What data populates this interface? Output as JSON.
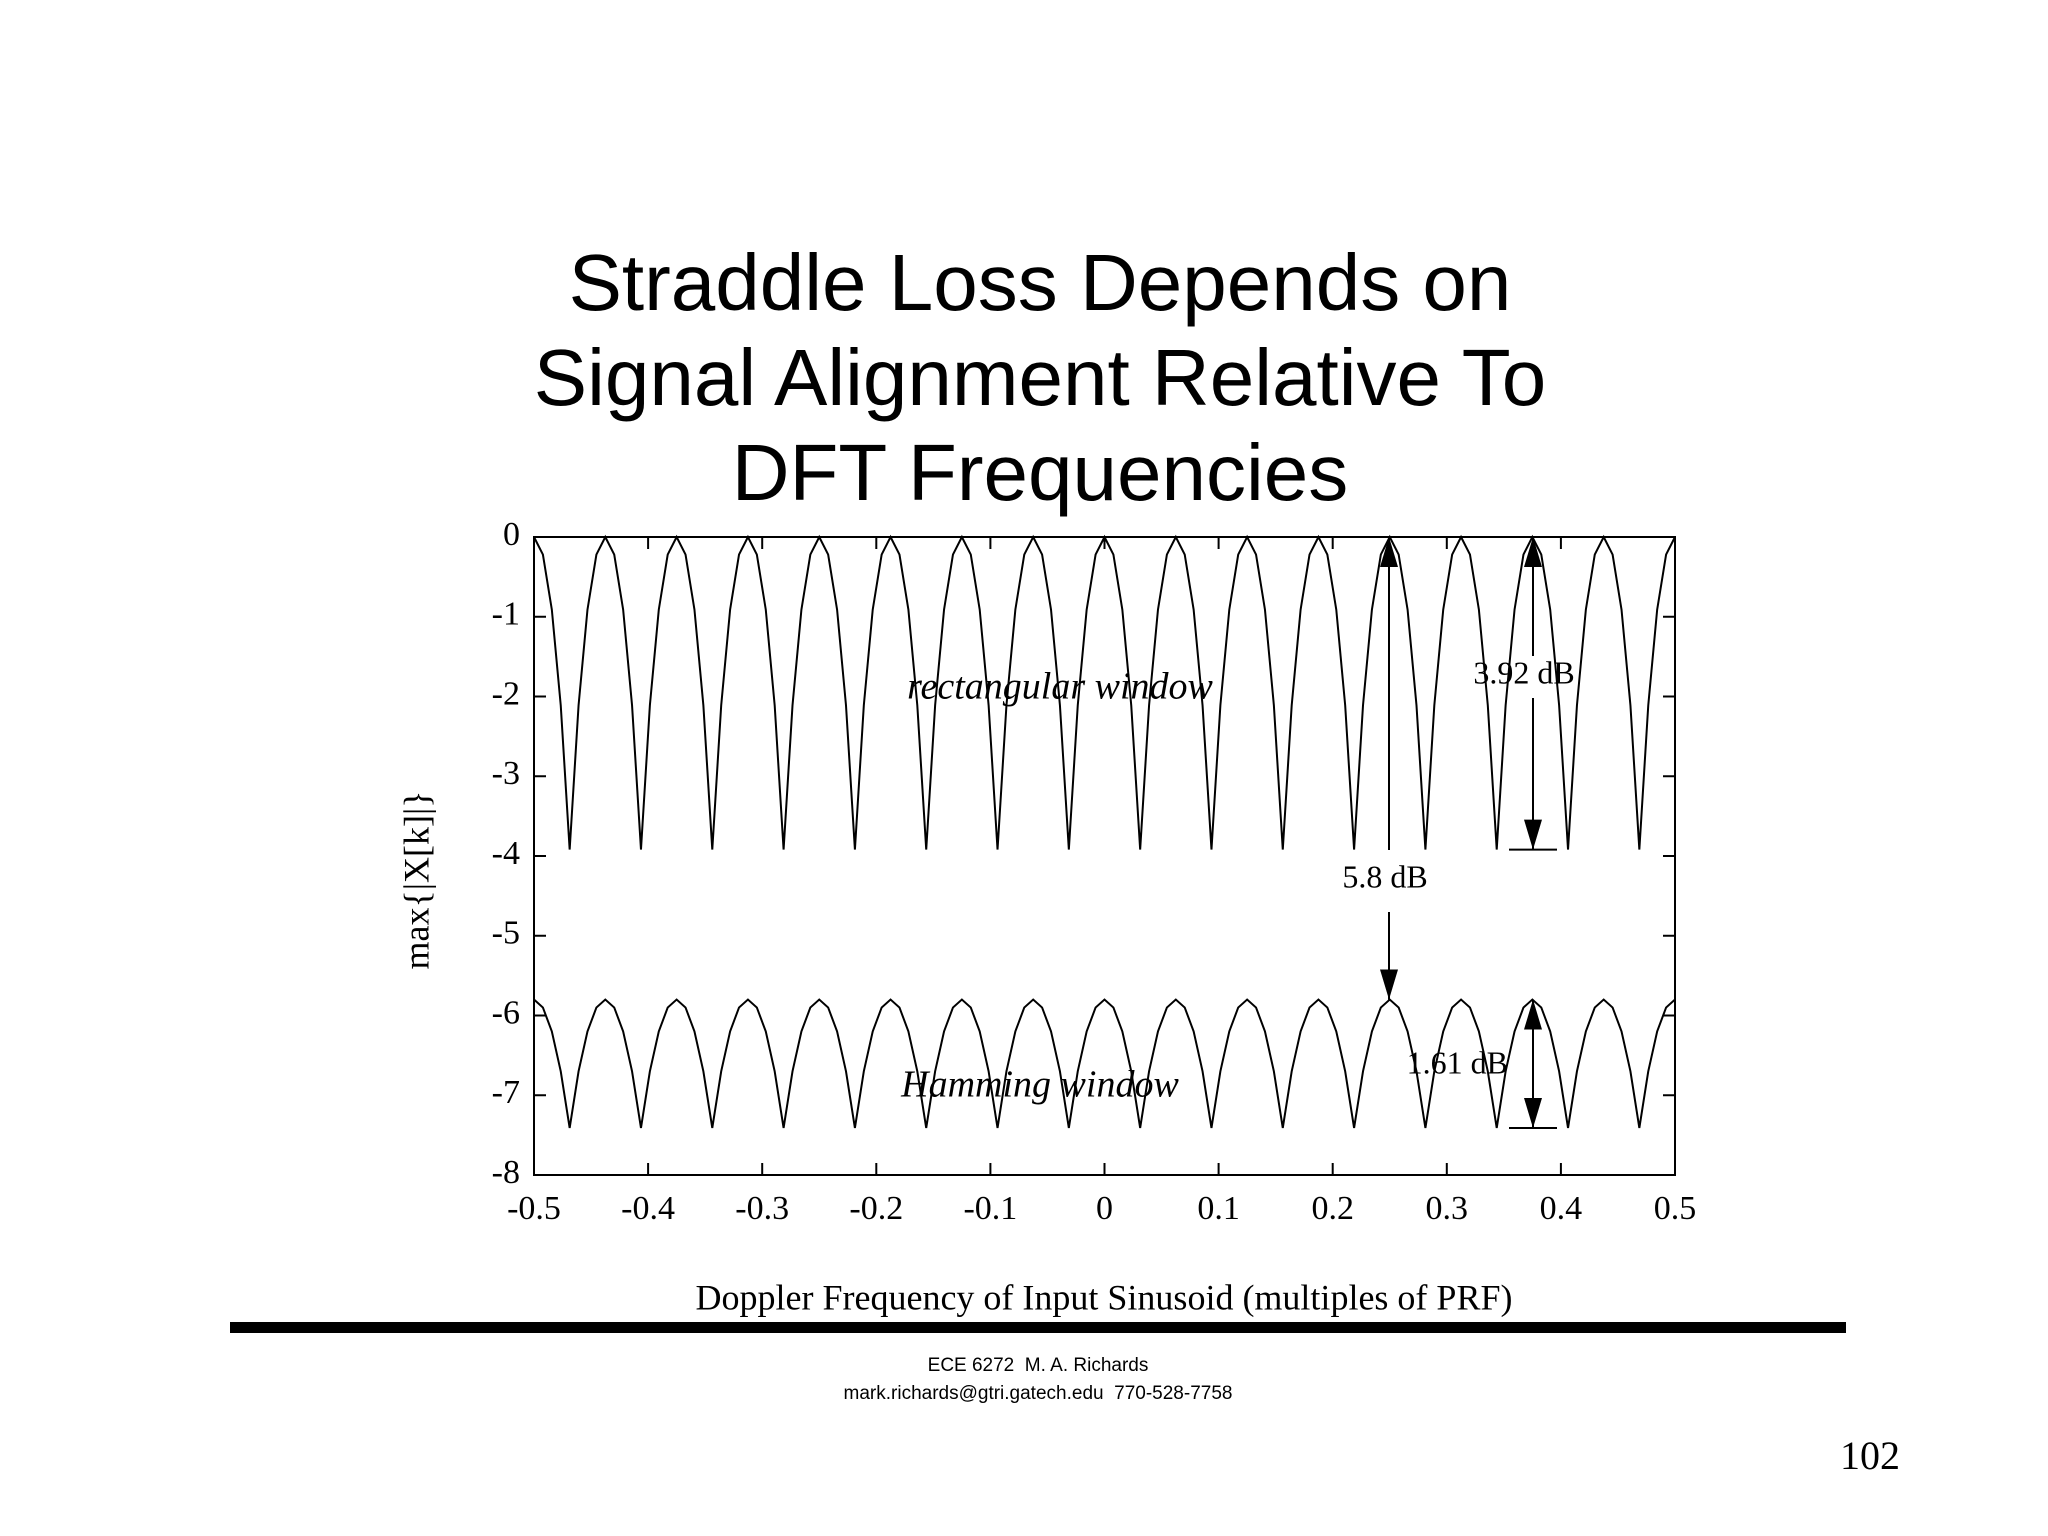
{
  "chart_data": {
    "type": "line",
    "title": [
      "Straddle Loss Depends on",
      "Signal Alignment Relative To",
      "DFT Frequencies"
    ],
    "x_label": "Doppler Frequency of Input Sinusoid (multiples of PRF)",
    "y_label": "max{|X[k]|}",
    "xlim": [
      -0.5,
      0.5
    ],
    "ylim": [
      -8,
      0
    ],
    "xticks": [
      -0.5,
      -0.4,
      -0.3,
      -0.2,
      -0.1,
      0,
      0.1,
      0.2,
      0.3,
      0.4,
      0.5
    ],
    "yticks": [
      0,
      -1,
      -2,
      -3,
      -4,
      -5,
      -6,
      -7,
      -8
    ],
    "grid": false,
    "annotations": [
      "rectangular window",
      "Hamming window",
      "3.92 dB",
      "5.8 dB",
      "1.61 dB"
    ],
    "x": [
      -0.5,
      -0.4921875,
      -0.484375,
      -0.4765625,
      -0.46875,
      -0.4609375,
      -0.453125,
      -0.4453125,
      -0.4375,
      -0.4296875,
      -0.421875,
      -0.4140625,
      -0.40625,
      -0.3984375,
      -0.390625,
      -0.3828125,
      -0.375,
      -0.3671875,
      -0.359375,
      -0.3515625,
      -0.34375,
      -0.3359375,
      -0.328125,
      -0.3203125,
      -0.3125,
      -0.3046875,
      -0.296875,
      -0.2890625,
      -0.28125,
      -0.2734375,
      -0.265625,
      -0.2578125,
      -0.25,
      -0.2421875,
      -0.234375,
      -0.2265625,
      -0.21875,
      -0.2109375,
      -0.203125,
      -0.1953125,
      -0.1875,
      -0.1796875,
      -0.171875,
      -0.1640625,
      -0.15625,
      -0.1484375,
      -0.140625,
      -0.1328125,
      -0.125,
      -0.1171875,
      -0.109375,
      -0.1015625,
      -0.09375,
      -0.0859375,
      -0.078125,
      -0.0703125,
      -0.0625,
      -0.0546875,
      -0.046875,
      -0.0390625,
      -0.03125,
      -0.0234375,
      -0.015625,
      -0.0078125,
      0,
      0.0078125,
      0.015625,
      0.0234375,
      0.03125,
      0.0390625,
      0.046875,
      0.0546875,
      0.0625,
      0.0703125,
      0.078125,
      0.0859375,
      0.09375,
      0.1015625,
      0.109375,
      0.1171875,
      0.125,
      0.1328125,
      0.140625,
      0.1484375,
      0.15625,
      0.1640625,
      0.171875,
      0.1796875,
      0.1875,
      0.1953125,
      0.203125,
      0.2109375,
      0.21875,
      0.2265625,
      0.234375,
      0.2421875,
      0.25,
      0.2578125,
      0.265625,
      0.2734375,
      0.28125,
      0.2890625,
      0.296875,
      0.3046875,
      0.3125,
      0.3203125,
      0.328125,
      0.3359375,
      0.34375,
      0.3515625,
      0.359375,
      0.3671875,
      0.375,
      0.3828125,
      0.390625,
      0.3984375,
      0.40625,
      0.4140625,
      0.421875,
      0.4296875,
      0.4375,
      0.4453125,
      0.453125,
      0.4609375,
      0.46875,
      0.4765625,
      0.484375,
      0.4921875,
      0.5
    ],
    "series": [
      {
        "name": "rectangular window",
        "color": "#000000",
        "values": [
          0,
          -0.22,
          -0.91,
          -2.11,
          -3.92,
          -2.11,
          -0.91,
          -0.22,
          0,
          -0.22,
          -0.91,
          -2.11,
          -3.92,
          -2.11,
          -0.91,
          -0.22,
          0,
          -0.22,
          -0.91,
          -2.11,
          -3.92,
          -2.11,
          -0.91,
          -0.22,
          0,
          -0.22,
          -0.91,
          -2.11,
          -3.92,
          -2.11,
          -0.91,
          -0.22,
          0,
          -0.22,
          -0.91,
          -2.11,
          -3.92,
          -2.11,
          -0.91,
          -0.22,
          0,
          -0.22,
          -0.91,
          -2.11,
          -3.92,
          -2.11,
          -0.91,
          -0.22,
          0,
          -0.22,
          -0.91,
          -2.11,
          -3.92,
          -2.11,
          -0.91,
          -0.22,
          0,
          -0.22,
          -0.91,
          -2.11,
          -3.92,
          -2.11,
          -0.91,
          -0.22,
          0,
          -0.22,
          -0.91,
          -2.11,
          -3.92,
          -2.11,
          -0.91,
          -0.22,
          0,
          -0.22,
          -0.91,
          -2.11,
          -3.92,
          -2.11,
          -0.91,
          -0.22,
          0,
          -0.22,
          -0.91,
          -2.11,
          -3.92,
          -2.11,
          -0.91,
          -0.22,
          0,
          -0.22,
          -0.91,
          -2.11,
          -3.92,
          -2.11,
          -0.91,
          -0.22,
          0,
          -0.22,
          -0.91,
          -2.11,
          -3.92,
          -2.11,
          -0.91,
          -0.22,
          0,
          -0.22,
          -0.91,
          -2.11,
          -3.92,
          -2.11,
          -0.91,
          -0.22,
          0,
          -0.22,
          -0.91,
          -2.11,
          -3.92,
          -2.11,
          -0.91,
          -0.22,
          0,
          -0.22,
          -0.91,
          -2.11,
          -3.92,
          -2.11,
          -0.91,
          -0.22,
          0
        ]
      },
      {
        "name": "Hamming window",
        "color": "#000000",
        "values": [
          -5.8,
          -5.9,
          -6.2,
          -6.7,
          -7.41,
          -6.7,
          -6.2,
          -5.9,
          -5.8,
          -5.9,
          -6.2,
          -6.7,
          -7.41,
          -6.7,
          -6.2,
          -5.9,
          -5.8,
          -5.9,
          -6.2,
          -6.7,
          -7.41,
          -6.7,
          -6.2,
          -5.9,
          -5.8,
          -5.9,
          -6.2,
          -6.7,
          -7.41,
          -6.7,
          -6.2,
          -5.9,
          -5.8,
          -5.9,
          -6.2,
          -6.7,
          -7.41,
          -6.7,
          -6.2,
          -5.9,
          -5.8,
          -5.9,
          -6.2,
          -6.7,
          -7.41,
          -6.7,
          -6.2,
          -5.9,
          -5.8,
          -5.9,
          -6.2,
          -6.7,
          -7.41,
          -6.7,
          -6.2,
          -5.9,
          -5.8,
          -5.9,
          -6.2,
          -6.7,
          -7.41,
          -6.7,
          -6.2,
          -5.9,
          -5.8,
          -5.9,
          -6.2,
          -6.7,
          -7.41,
          -6.7,
          -6.2,
          -5.9,
          -5.8,
          -5.9,
          -6.2,
          -6.7,
          -7.41,
          -6.7,
          -6.2,
          -5.9,
          -5.8,
          -5.9,
          -6.2,
          -6.7,
          -7.41,
          -6.7,
          -6.2,
          -5.9,
          -5.8,
          -5.9,
          -6.2,
          -6.7,
          -7.41,
          -6.7,
          -6.2,
          -5.9,
          -5.8,
          -5.9,
          -6.2,
          -6.7,
          -7.41,
          -6.7,
          -6.2,
          -5.9,
          -5.8,
          -5.9,
          -6.2,
          -6.7,
          -7.41,
          -6.7,
          -6.2,
          -5.9,
          -5.8,
          -5.9,
          -6.2,
          -6.7,
          -7.41,
          -6.7,
          -6.2,
          -5.9,
          -5.8,
          -5.9,
          -6.2,
          -6.7,
          -7.41,
          -6.7,
          -6.2,
          -5.9,
          -5.8
        ]
      }
    ]
  },
  "footer": {
    "course": "ECE 6272  M. A. Richards",
    "contact": "mark.richards@gtri.gatech.edu  770-528-7758",
    "page_number": "102"
  }
}
